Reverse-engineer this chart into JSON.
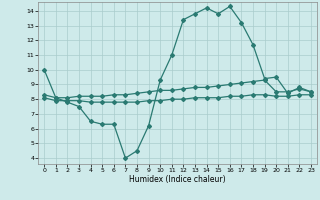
{
  "xlabel": "Humidex (Indice chaleur)",
  "x": [
    0,
    1,
    2,
    3,
    4,
    5,
    6,
    7,
    8,
    9,
    10,
    11,
    12,
    13,
    14,
    15,
    16,
    17,
    18,
    19,
    20,
    21,
    22,
    23
  ],
  "line1": [
    10,
    8.1,
    7.8,
    7.5,
    6.5,
    6.3,
    6.3,
    4.0,
    4.5,
    6.2,
    9.3,
    11.0,
    13.4,
    13.8,
    14.2,
    13.8,
    14.3,
    13.2,
    11.7,
    9.4,
    9.5,
    8.4,
    8.8,
    8.5
  ],
  "line2": [
    8.3,
    8.1,
    8.1,
    8.2,
    8.2,
    8.2,
    8.3,
    8.3,
    8.4,
    8.5,
    8.6,
    8.6,
    8.7,
    8.8,
    8.8,
    8.9,
    9.0,
    9.1,
    9.2,
    9.3,
    8.5,
    8.5,
    8.7,
    8.5
  ],
  "line3": [
    8.1,
    7.9,
    7.9,
    7.9,
    7.8,
    7.8,
    7.8,
    7.8,
    7.8,
    7.9,
    7.9,
    8.0,
    8.0,
    8.1,
    8.1,
    8.1,
    8.2,
    8.2,
    8.3,
    8.3,
    8.2,
    8.2,
    8.3,
    8.3
  ],
  "line_color": "#2a7a72",
  "bg_color": "#ceeaea",
  "grid_color": "#aacccc",
  "ylim": [
    3.6,
    14.6
  ],
  "xlim": [
    -0.5,
    23.5
  ],
  "yticks": [
    4,
    5,
    6,
    7,
    8,
    9,
    10,
    11,
    12,
    13,
    14
  ],
  "xticks": [
    0,
    1,
    2,
    3,
    4,
    5,
    6,
    7,
    8,
    9,
    10,
    11,
    12,
    13,
    14,
    15,
    16,
    17,
    18,
    19,
    20,
    21,
    22,
    23
  ],
  "marker": "D",
  "markersize": 2.0,
  "linewidth": 0.9
}
